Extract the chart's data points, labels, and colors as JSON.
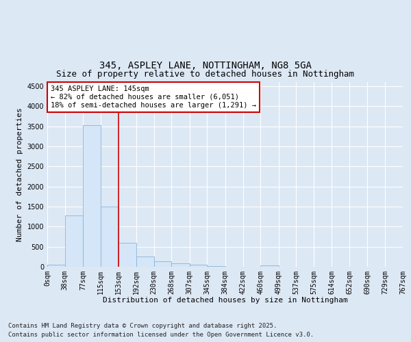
{
  "title_line1": "345, ASPLEY LANE, NOTTINGHAM, NG8 5GA",
  "title_line2": "Size of property relative to detached houses in Nottingham",
  "xlabel": "Distribution of detached houses by size in Nottingham",
  "ylabel": "Number of detached properties",
  "bin_labels": [
    "0sqm",
    "38sqm",
    "77sqm",
    "115sqm",
    "153sqm",
    "192sqm",
    "230sqm",
    "268sqm",
    "307sqm",
    "345sqm",
    "384sqm",
    "422sqm",
    "460sqm",
    "499sqm",
    "537sqm",
    "575sqm",
    "614sqm",
    "652sqm",
    "690sqm",
    "729sqm",
    "767sqm"
  ],
  "bin_edges": [
    0,
    38,
    77,
    115,
    153,
    192,
    230,
    268,
    307,
    345,
    384,
    422,
    460,
    499,
    537,
    575,
    614,
    652,
    690,
    729,
    767
  ],
  "bar_heights": [
    50,
    1280,
    3530,
    1500,
    600,
    250,
    135,
    80,
    50,
    10,
    3,
    1,
    30,
    0,
    0,
    0,
    0,
    0,
    0,
    0
  ],
  "bar_color": "#d4e6f7",
  "bar_edge_color": "#8ab4d8",
  "vline_x": 153,
  "vline_color": "#cc0000",
  "ylim": [
    0,
    4600
  ],
  "yticks": [
    0,
    500,
    1000,
    1500,
    2000,
    2500,
    3000,
    3500,
    4000,
    4500
  ],
  "annotation_title": "345 ASPLEY LANE: 145sqm",
  "annotation_line1": "← 82% of detached houses are smaller (6,051)",
  "annotation_line2": "18% of semi-detached houses are larger (1,291) →",
  "annotation_box_color": "white",
  "annotation_box_edge_color": "#cc0000",
  "footer_line1": "Contains HM Land Registry data © Crown copyright and database right 2025.",
  "footer_line2": "Contains public sector information licensed under the Open Government Licence v3.0.",
  "background_color": "#dde8f5",
  "plot_bg_color": "#dde8f5",
  "grid_color": "white",
  "title_fontsize": 10,
  "subtitle_fontsize": 9,
  "footer_fontsize": 6.5,
  "axis_label_fontsize": 8,
  "tick_fontsize": 7,
  "annot_fontsize": 7.5
}
